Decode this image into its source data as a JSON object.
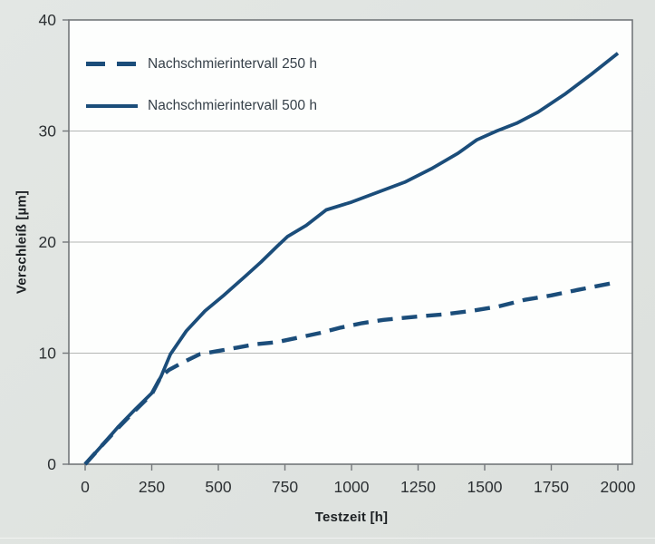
{
  "chart": {
    "xlabel": "Testzeit [h]",
    "ylabel": "Verschleiß [µm]",
    "legend": [
      {
        "label": "Nachschmierintervall 250 h",
        "style": "dashed"
      },
      {
        "label": "Nachschmierintervall 500 h",
        "style": "solid"
      }
    ]
  },
  "chart_data": {
    "type": "line",
    "title": "",
    "xlabel": "Testzeit [h]",
    "ylabel": "Verschleiß [µm]",
    "xlim": [
      0,
      2000
    ],
    "ylim": [
      0,
      40
    ],
    "x_ticks": [
      0,
      250,
      500,
      750,
      1000,
      1250,
      1500,
      1750,
      2000
    ],
    "y_ticks": [
      0,
      10,
      20,
      30,
      40
    ],
    "grid": "horizontal",
    "legend_position": "top-left-inside",
    "colors": {
      "line": "#1b4d7a",
      "frame": "#73777a",
      "gridline": "#b3b6b4",
      "tick_text": "#2c3033",
      "plot_background": "#fdfefd",
      "page_background": "#e0e4e1"
    },
    "series": [
      {
        "name": "Nachschmierintervall 250 h",
        "style": "dashed",
        "points": [
          [
            0,
            0
          ],
          [
            60,
            1.6
          ],
          [
            125,
            3.3
          ],
          [
            190,
            4.9
          ],
          [
            250,
            6.3
          ],
          [
            285,
            7.9
          ],
          [
            315,
            8.5
          ],
          [
            370,
            9.2
          ],
          [
            430,
            9.9
          ],
          [
            500,
            10.2
          ],
          [
            570,
            10.5
          ],
          [
            640,
            10.8
          ],
          [
            720,
            11.0
          ],
          [
            800,
            11.4
          ],
          [
            880,
            11.8
          ],
          [
            960,
            12.3
          ],
          [
            1040,
            12.7
          ],
          [
            1120,
            13.0
          ],
          [
            1250,
            13.3
          ],
          [
            1350,
            13.5
          ],
          [
            1450,
            13.8
          ],
          [
            1550,
            14.2
          ],
          [
            1650,
            14.8
          ],
          [
            1750,
            15.2
          ],
          [
            1850,
            15.7
          ],
          [
            2000,
            16.4
          ]
        ]
      },
      {
        "name": "Nachschmierintervall 500 h",
        "style": "solid",
        "points": [
          [
            0,
            0
          ],
          [
            60,
            1.6
          ],
          [
            125,
            3.4
          ],
          [
            190,
            5.0
          ],
          [
            250,
            6.4
          ],
          [
            285,
            7.9
          ],
          [
            320,
            9.9
          ],
          [
            380,
            12.0
          ],
          [
            450,
            13.8
          ],
          [
            520,
            15.2
          ],
          [
            600,
            16.9
          ],
          [
            660,
            18.2
          ],
          [
            720,
            19.6
          ],
          [
            760,
            20.5
          ],
          [
            830,
            21.5
          ],
          [
            905,
            22.9
          ],
          [
            1000,
            23.6
          ],
          [
            1100,
            24.5
          ],
          [
            1200,
            25.4
          ],
          [
            1300,
            26.6
          ],
          [
            1400,
            28.0
          ],
          [
            1470,
            29.2
          ],
          [
            1545,
            30.0
          ],
          [
            1620,
            30.7
          ],
          [
            1700,
            31.7
          ],
          [
            1800,
            33.3
          ],
          [
            1900,
            35.1
          ],
          [
            2000,
            37.0
          ]
        ]
      }
    ]
  }
}
